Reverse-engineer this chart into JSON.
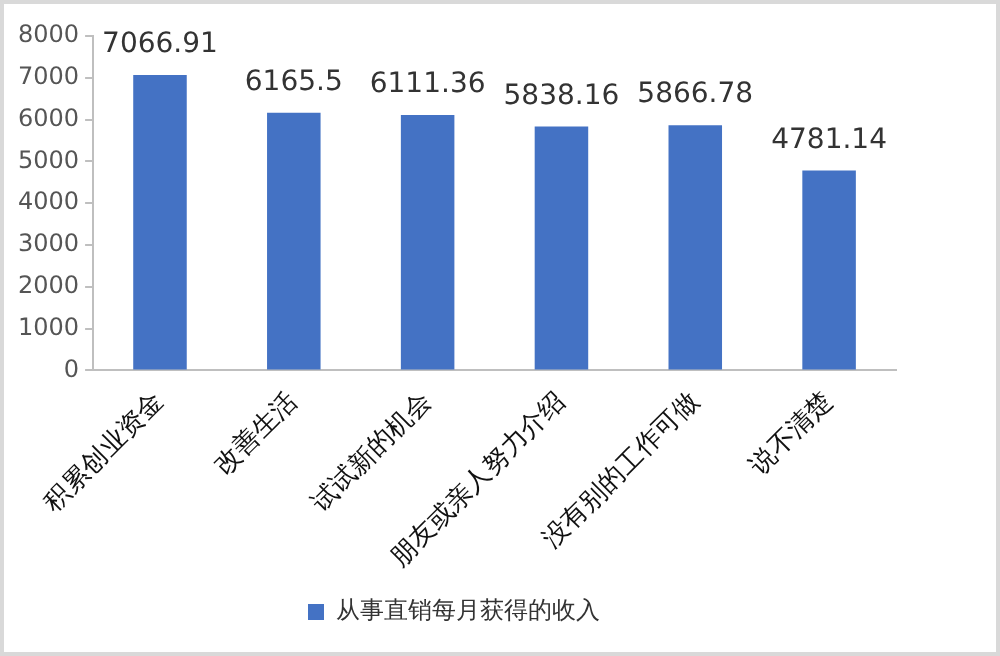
{
  "chart_data": {
    "type": "bar",
    "categories": [
      "积累创业资金",
      "改善生活",
      "试试新的机会",
      "朋友或亲人努力介绍",
      "没有别的工作可做",
      "说不清楚"
    ],
    "series": [
      {
        "name": "从事直销每月获得的收入",
        "color": "#4472c4",
        "values": [
          7066.91,
          6165.5,
          6111.36,
          5838.16,
          5866.78,
          4781.14
        ]
      }
    ],
    "ylim": [
      0,
      8000
    ],
    "yticks": [
      0,
      1000,
      2000,
      3000,
      4000,
      5000,
      6000,
      7000,
      8000
    ],
    "grid": false,
    "legend": "bottom",
    "data_labels": true
  }
}
